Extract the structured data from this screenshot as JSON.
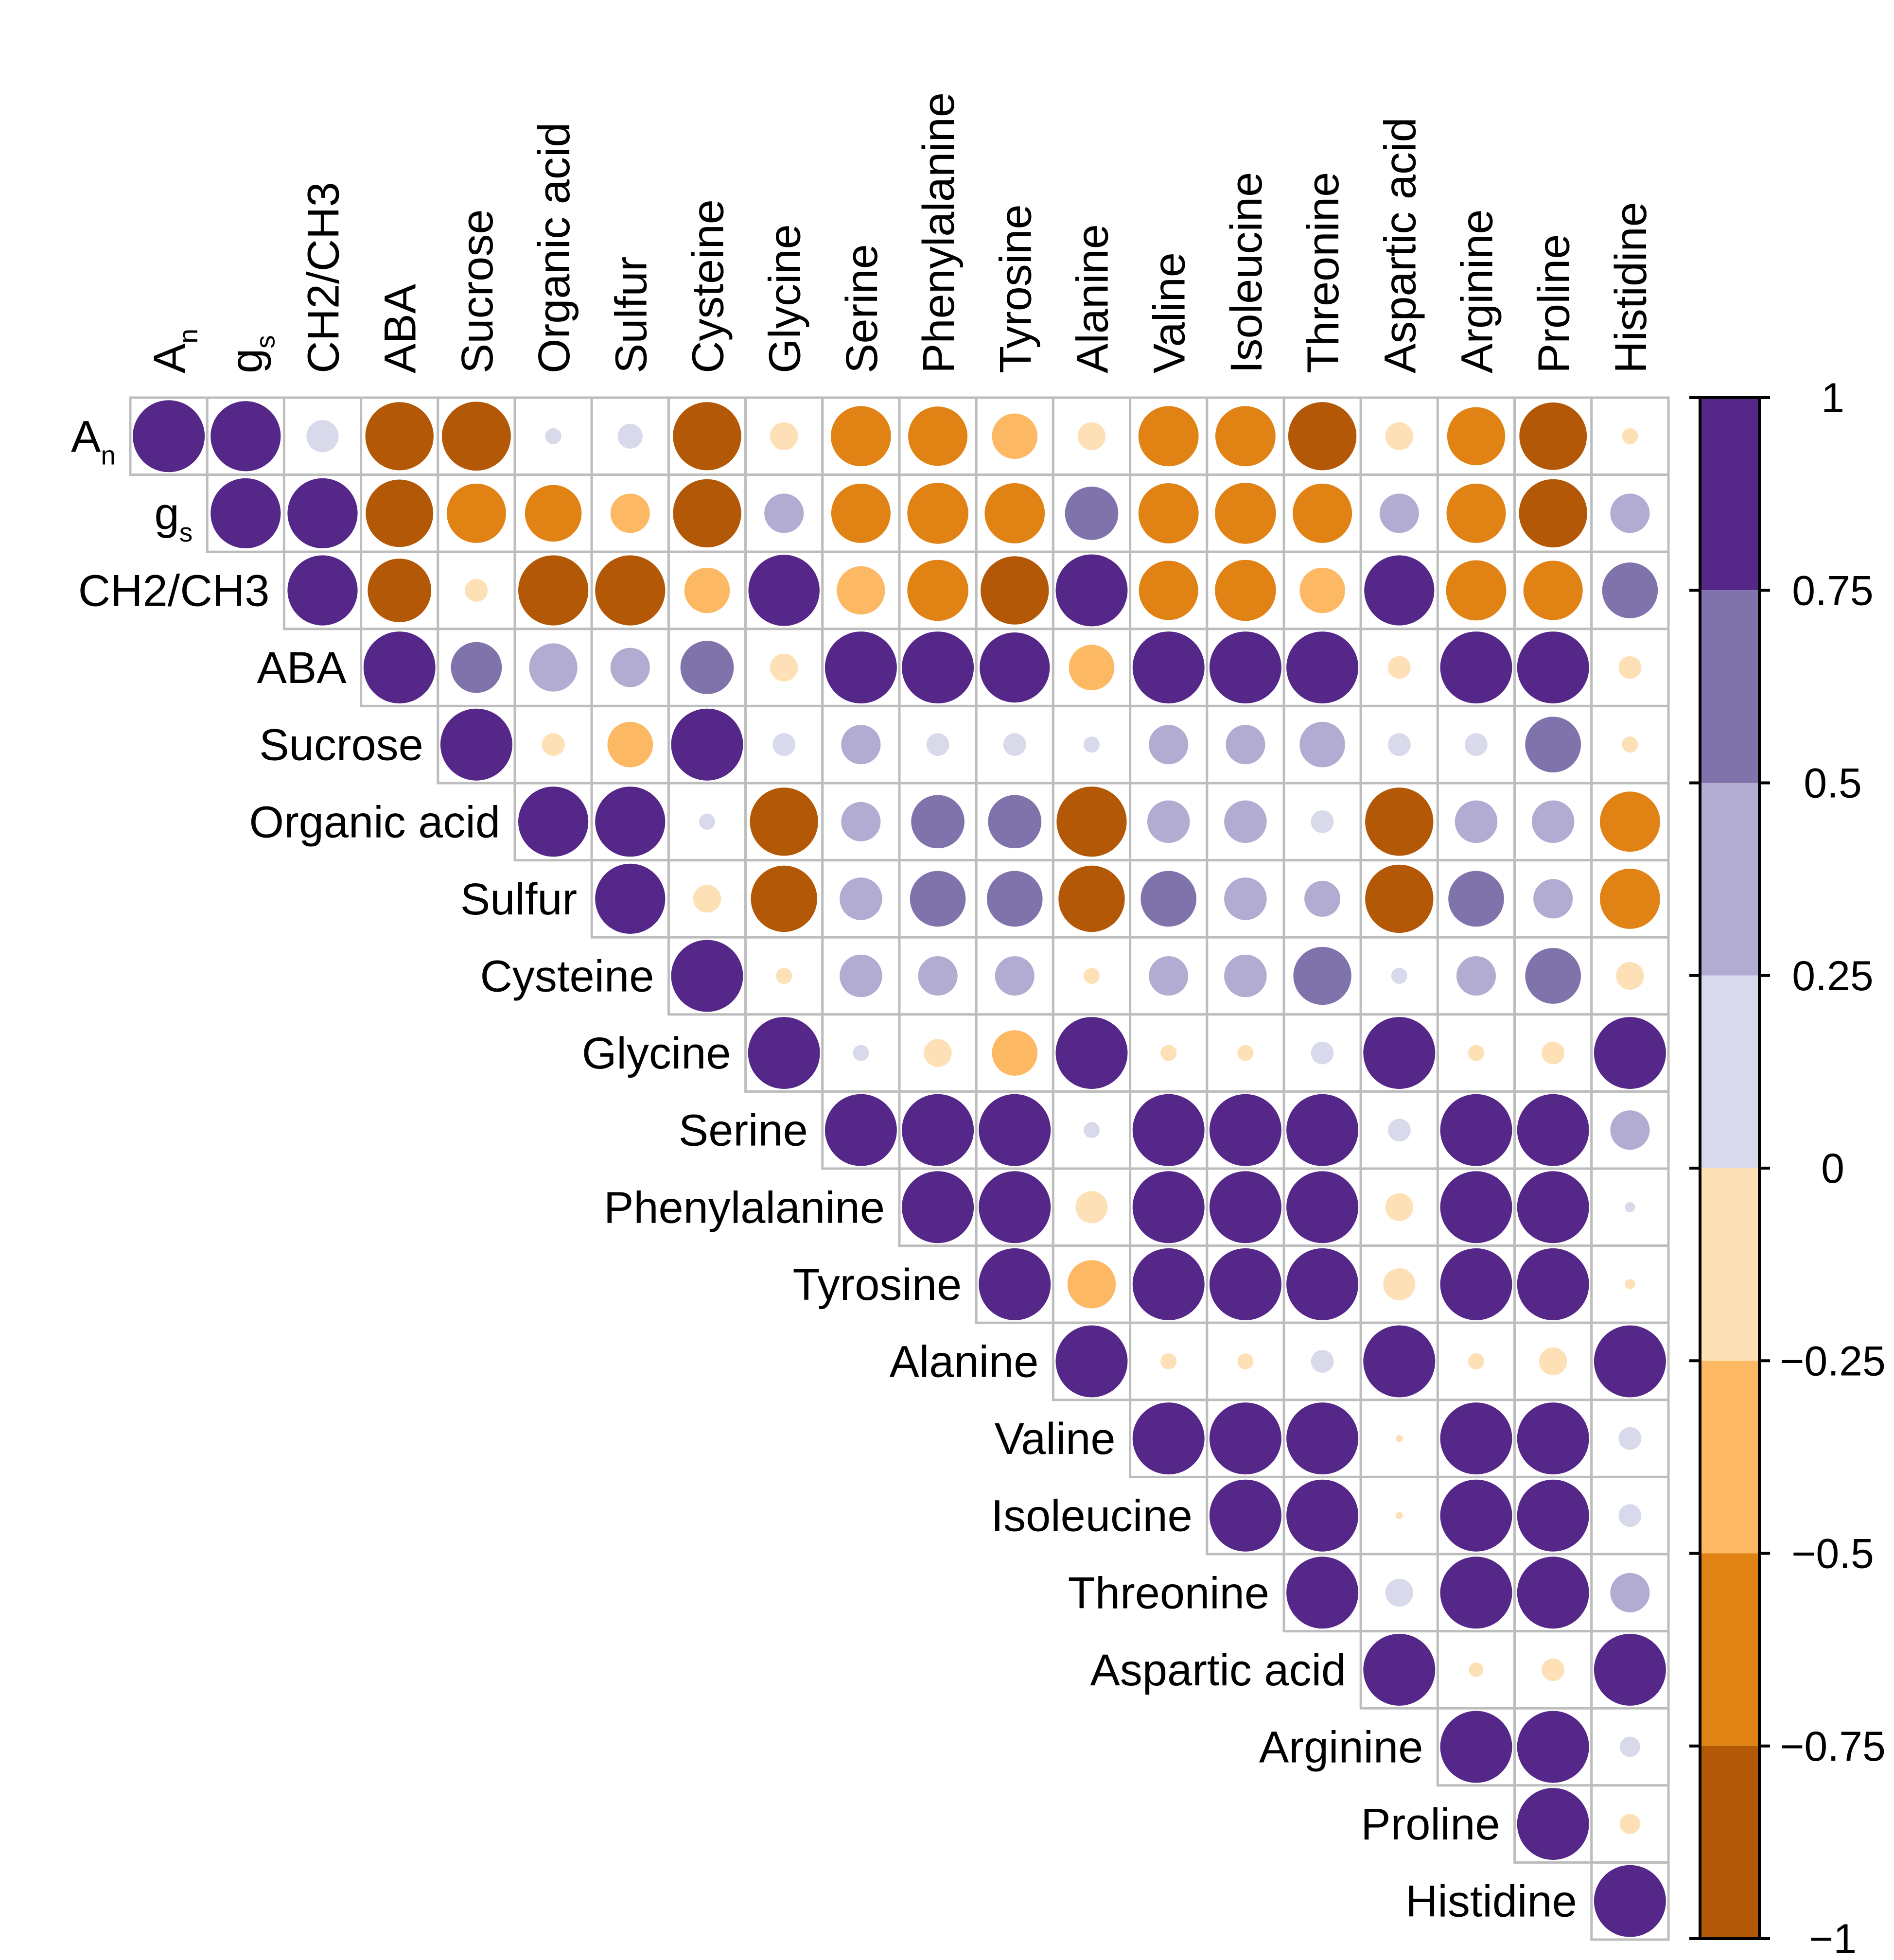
{
  "chart_data": {
    "type": "heatmap",
    "variables": [
      "A",
      "g",
      "CH2/CH3",
      "ABA",
      "Sucrose",
      "Organic acid",
      "Sulfur",
      "Cysteine",
      "Glycine",
      "Serine",
      "Phenylalanine",
      "Tyrosine",
      "Alanine",
      "Valine",
      "Isoleucine",
      "Threonine",
      "Aspartic acid",
      "Arginine",
      "Proline",
      "Histidine"
    ],
    "subscripts": [
      "n",
      "s",
      "",
      "",
      "",
      "",
      "",
      "",
      "",
      "",
      "",
      "",
      "",
      "",
      "",
      "",
      "",
      "",
      "",
      ""
    ],
    "matrix_layout": "upper-triangle",
    "value_range": [
      -1,
      1
    ],
    "rows": [
      [
        1,
        0.95,
        0.2,
        -0.9,
        -0.92,
        0.05,
        0.12,
        -0.9,
        -0.15,
        -0.7,
        -0.68,
        -0.4,
        -0.15,
        -0.7,
        -0.7,
        -0.9,
        -0.15,
        -0.65,
        -0.88,
        -0.05
      ],
      [
        0.95,
        0.95,
        -0.88,
        -0.68,
        -0.62,
        -0.3,
        -0.9,
        0.3,
        -0.68,
        -0.72,
        -0.7,
        0.55,
        -0.7,
        -0.72,
        -0.68,
        0.3,
        -0.68,
        -0.9,
        0.3
      ],
      [
        0.95,
        -0.78,
        -0.1,
        -0.95,
        -0.95,
        -0.4,
        0.98,
        -0.45,
        -0.72,
        -0.9,
        1,
        -0.68,
        -0.72,
        -0.4,
        0.95,
        -0.7,
        -0.68,
        0.6
      ],
      [
        1,
        0.5,
        0.45,
        0.3,
        0.55,
        -0.15,
        1,
        1,
        0.95,
        -0.4,
        1,
        1,
        1,
        -0.1,
        1,
        1,
        -0.1
      ],
      [
        1,
        -0.1,
        -0.4,
        1,
        0.1,
        0.3,
        0.1,
        0.1,
        0.05,
        0.3,
        0.3,
        0.4,
        0.1,
        0.1,
        0.6,
        -0.05
      ],
      [
        0.95,
        0.95,
        0.05,
        -0.9,
        0.3,
        0.55,
        0.55,
        -0.95,
        0.35,
        0.35,
        0.1,
        -0.9,
        0.35,
        0.35,
        -0.7
      ],
      [
        0.95,
        -0.15,
        -0.85,
        0.35,
        0.6,
        0.6,
        -0.85,
        0.6,
        0.35,
        0.25,
        -0.9,
        0.6,
        0.3,
        -0.7
      ],
      [
        1,
        -0.05,
        0.35,
        0.3,
        0.3,
        -0.05,
        0.3,
        0.35,
        0.65,
        0.05,
        0.3,
        0.6,
        -0.15
      ],
      [
        1,
        0.05,
        -0.15,
        -0.4,
        1,
        -0.05,
        -0.05,
        0.1,
        1,
        -0.05,
        -0.1,
        1
      ],
      [
        1,
        1,
        1,
        0.05,
        1,
        1,
        1,
        0.1,
        1,
        1,
        0.3
      ],
      [
        1,
        1,
        -0.2,
        1,
        1,
        1,
        -0.15,
        1,
        1,
        0.02
      ],
      [
        1,
        -0.45,
        1,
        1,
        1,
        -0.2,
        1,
        1,
        -0.02
      ],
      [
        1,
        -0.05,
        -0.05,
        0.1,
        1,
        -0.05,
        -0.15,
        1
      ],
      [
        1,
        1,
        1,
        -0.01,
        1,
        1,
        0.1
      ],
      [
        1,
        1,
        -0.01,
        1,
        1,
        0.1
      ],
      [
        1,
        0.15,
        1,
        1,
        0.3
      ],
      [
        1,
        -0.04,
        -0.1,
        1
      ],
      [
        1,
        1,
        0.08
      ],
      [
        1,
        -0.08
      ],
      [
        1
      ]
    ],
    "legend": {
      "type": "colorbar",
      "position": "right",
      "ticks": [
        "1",
        "0.75",
        "0.5",
        "0.25",
        "0",
        "−0.25",
        "−0.5",
        "−0.75",
        "−1"
      ],
      "bins": [
        {
          "range": [
            0.75,
            1
          ],
          "color": "#542788"
        },
        {
          "range": [
            0.5,
            0.75
          ],
          "color": "#8073ac"
        },
        {
          "range": [
            0.25,
            0.5
          ],
          "color": "#b2abd2"
        },
        {
          "range": [
            0,
            0.25
          ],
          "color": "#d8daeb"
        },
        {
          "range": [
            -0.25,
            0
          ],
          "color": "#fee0b6"
        },
        {
          "range": [
            -0.5,
            -0.25
          ],
          "color": "#fdb863"
        },
        {
          "range": [
            -0.75,
            -0.5
          ],
          "color": "#e08214"
        },
        {
          "range": [
            -1,
            -0.75
          ],
          "color": "#b35806"
        }
      ]
    }
  }
}
